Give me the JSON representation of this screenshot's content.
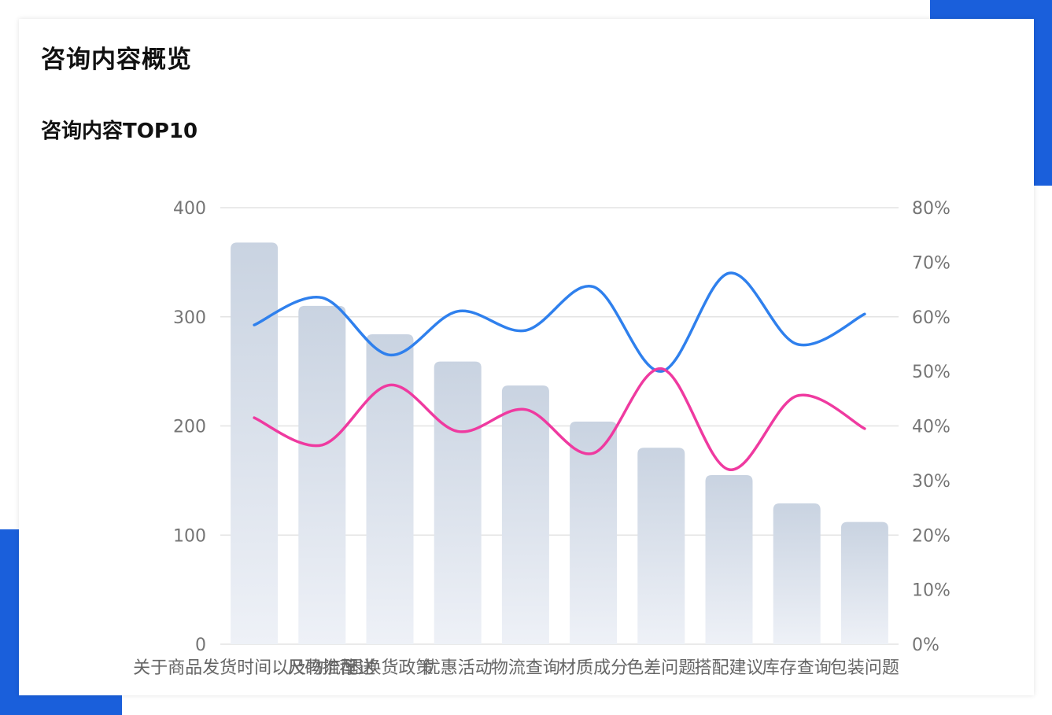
{
  "header": {
    "title": "咨询内容概览"
  },
  "chart_data": {
    "type": "bar",
    "title": "咨询内容TOP10",
    "categories": [
      "关于商品发货时间以及物流配送",
      "尺码推荐",
      "退换货政策",
      "优惠活动",
      "物流查询",
      "材质成分",
      "色差问题",
      "搭配建议",
      "库存查询",
      "包装问题"
    ],
    "series": [
      {
        "kind": "bar",
        "axis": "left",
        "values": [
          368,
          310,
          284,
          259,
          237,
          204,
          180,
          155,
          129,
          112
        ]
      },
      {
        "kind": "line",
        "axis": "right",
        "values": [
          58.5,
          63.5,
          53,
          61,
          57.5,
          65.5,
          50,
          68,
          55,
          60.5
        ]
      },
      {
        "kind": "line",
        "axis": "right",
        "values": [
          41.5,
          36.5,
          47.5,
          39,
          43,
          35,
          50.5,
          32,
          45.5,
          39.5
        ]
      }
    ],
    "y_left": {
      "min": 0,
      "max": 400,
      "ticks": [
        "0",
        "100",
        "200",
        "300",
        "400"
      ]
    },
    "y_right": {
      "min": 0,
      "max": 80,
      "ticks": [
        "0%",
        "10%",
        "20%",
        "30%",
        "40%",
        "50%",
        "60%",
        "70%",
        "80%"
      ]
    },
    "grid": true,
    "colors": {
      "bar_top": "#c9d3e1",
      "bar_bottom": "#eef1f7",
      "line_blue": "#2f80ed",
      "line_pink": "#ef3aa0",
      "grid": "#e3e3e3",
      "accent": "#1a5fdb"
    }
  }
}
